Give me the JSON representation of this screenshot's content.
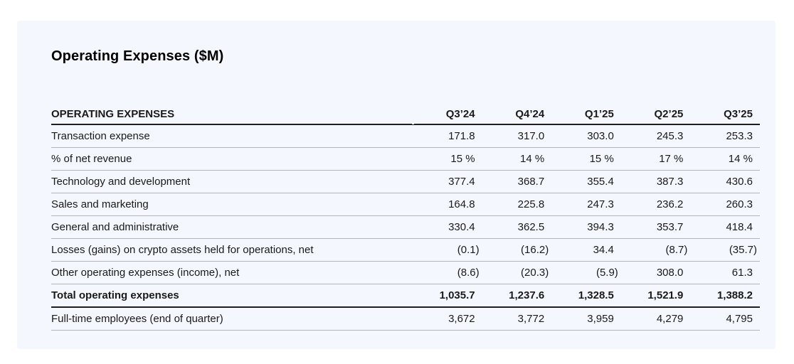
{
  "page": {
    "background": "#ffffff",
    "panel_background": "#f4f7fd",
    "thin_rule_color": "#b2b5ba",
    "thick_rule_color": "#1e1e1e",
    "text_color": "#1a1a1a"
  },
  "title": "Operating Expenses ($M)",
  "table": {
    "header": {
      "label": "OPERATING EXPENSES",
      "columns": [
        "Q3’24",
        "Q4’24",
        "Q1’25",
        "Q2’25",
        "Q3’25"
      ]
    },
    "rows": [
      {
        "label": "Transaction expense",
        "values": [
          "171.8",
          "317.0",
          "303.0",
          "245.3",
          "253.3"
        ],
        "bold": false
      },
      {
        "label": "% of net revenue",
        "values": [
          "15 %",
          "14 %",
          "15 %",
          "17 %",
          "14 %"
        ],
        "bold": false
      },
      {
        "label": "Technology and development",
        "values": [
          "377.4",
          "368.7",
          "355.4",
          "387.3",
          "430.6"
        ],
        "bold": false
      },
      {
        "label": "Sales and marketing",
        "values": [
          "164.8",
          "225.8",
          "247.3",
          "236.2",
          "260.3"
        ],
        "bold": false
      },
      {
        "label": "General and administrative",
        "values": [
          "330.4",
          "362.5",
          "394.3",
          "353.7",
          "418.4"
        ],
        "bold": false
      },
      {
        "label": "Losses (gains) on crypto assets held for operations, net",
        "values": [
          "(0.1)",
          "(16.2)",
          "34.4",
          "(8.7)",
          "(35.7)"
        ],
        "bold": false
      },
      {
        "label": "Other operating expenses (income), net",
        "values": [
          "(8.6)",
          "(20.3)",
          "(5.9)",
          "308.0",
          "61.3"
        ],
        "bold": false
      },
      {
        "label": "Total operating expenses",
        "values": [
          "1,035.7",
          "1,237.6",
          "1,328.5",
          "1,521.9",
          "1,388.2"
        ],
        "bold": true
      },
      {
        "label": "Full-time employees (end of quarter)",
        "values": [
          "3,672",
          "3,772",
          "3,959",
          "4,279",
          "4,795"
        ],
        "bold": false
      }
    ]
  }
}
